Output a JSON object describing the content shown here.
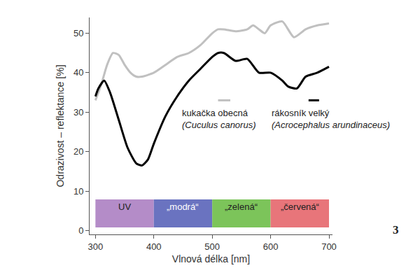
{
  "chart_data": {
    "type": "line",
    "x_label": "Vlnová délka [nm]",
    "y_label": "Odrazivost – reflektance [%]",
    "xlim": [
      290,
      706
    ],
    "ylim": [
      -1,
      54
    ],
    "xticks": [
      300,
      400,
      500,
      600,
      700
    ],
    "yticks": [
      0,
      10,
      20,
      30,
      40,
      50
    ],
    "grid": false,
    "series": [
      {
        "name": "kukačka obecná (Cuculus canorus)",
        "color": "#c0c0c0",
        "x": [
          300,
          310,
          320,
          330,
          340,
          350,
          360,
          370,
          380,
          400,
          420,
          440,
          460,
          480,
          500,
          510,
          520,
          540,
          560,
          570,
          580,
          590,
          600,
          620,
          640,
          660,
          680,
          700
        ],
        "values": [
          33,
          37,
          42,
          45,
          44.5,
          42,
          40,
          39,
          39,
          40,
          42,
          44,
          45,
          47,
          50,
          51,
          51,
          50.5,
          51,
          52,
          51,
          50,
          52,
          53,
          49,
          51,
          52,
          52.5
        ]
      },
      {
        "name": "rákosník velký (Acrocephalus arundinaceus)",
        "color": "#000000",
        "x": [
          300,
          305,
          315,
          325,
          340,
          355,
          370,
          380,
          390,
          400,
          420,
          440,
          460,
          480,
          500,
          510,
          520,
          540,
          560,
          580,
          600,
          620,
          630,
          645,
          660,
          680,
          700
        ],
        "values": [
          34,
          36,
          38,
          35,
          28,
          21,
          17,
          16.5,
          18,
          22,
          29,
          34,
          38,
          41,
          44,
          45,
          45,
          43,
          43.5,
          40,
          40,
          38,
          36.5,
          36,
          39,
          40,
          41.5
        ]
      }
    ],
    "bands": [
      {
        "label": "UV",
        "x0": 300,
        "x1": 400,
        "color": "#b48cc8"
      },
      {
        "label": "„modrá“",
        "x0": 400,
        "x1": 500,
        "color": "#6a73c0"
      },
      {
        "label": "„zelená“",
        "x0": 500,
        "x1": 600,
        "color": "#7cc45a"
      },
      {
        "label": "„červená“",
        "x0": 600,
        "x1": 700,
        "color": "#e8757a"
      }
    ],
    "annotations": [
      {
        "text": "3"
      }
    ]
  }
}
